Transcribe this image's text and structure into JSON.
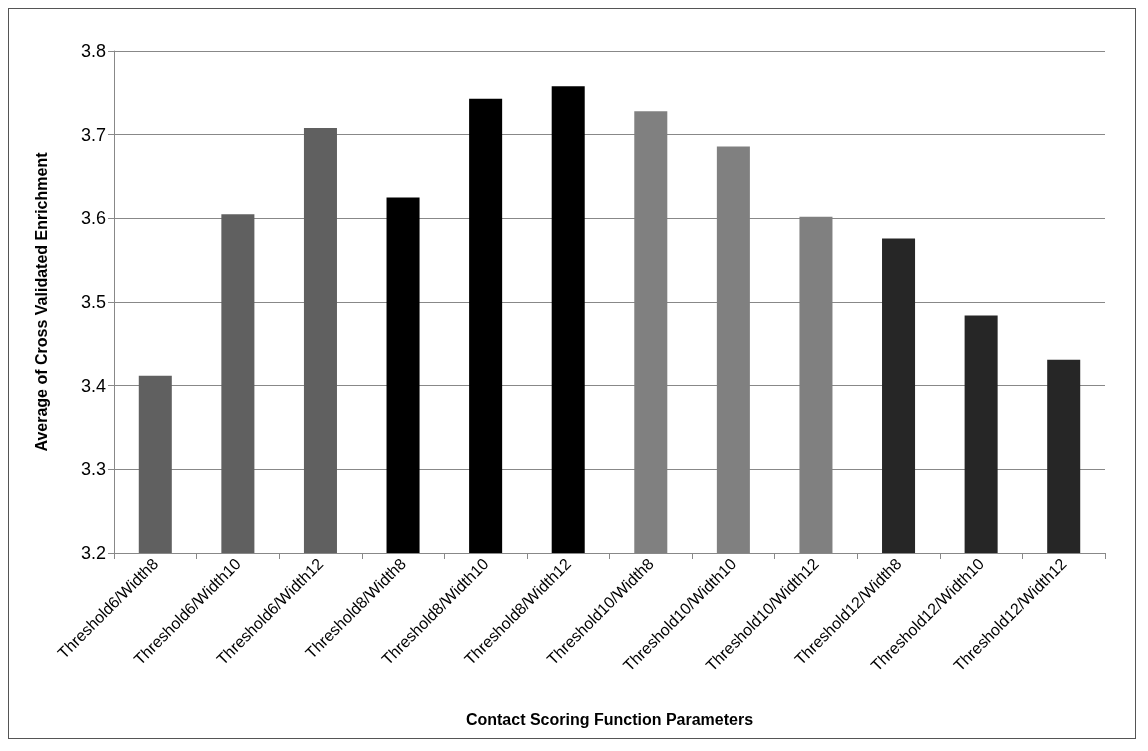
{
  "chart_data": {
    "type": "bar",
    "xlabel": "Contact Scoring Function Parameters",
    "ylabel": "Average of Cross Validated Enrichment",
    "categories": [
      "Threshold6/Width8",
      "Threshold6/Width10",
      "Threshold6/Width12",
      "Threshold8/Width8",
      "Threshold8/Width10",
      "Threshold8/Width12",
      "Threshold10/Width8",
      "Threshold10/Width10",
      "Threshold10/Width12",
      "Threshold12/Width8",
      "Threshold12/Width10",
      "Threshold12/Width12"
    ],
    "values": [
      3.412,
      3.605,
      3.708,
      3.625,
      3.743,
      3.758,
      3.728,
      3.686,
      3.602,
      3.576,
      3.484,
      3.431
    ],
    "colors": [
      "#606060",
      "#606060",
      "#606060",
      "#000000",
      "#000000",
      "#000000",
      "#808080",
      "#808080",
      "#808080",
      "#262626",
      "#262626",
      "#262626"
    ],
    "ylim": [
      3.2,
      3.8
    ],
    "yticks": [
      3.2,
      3.3,
      3.4,
      3.5,
      3.6,
      3.7,
      3.8
    ],
    "grid": "y"
  }
}
